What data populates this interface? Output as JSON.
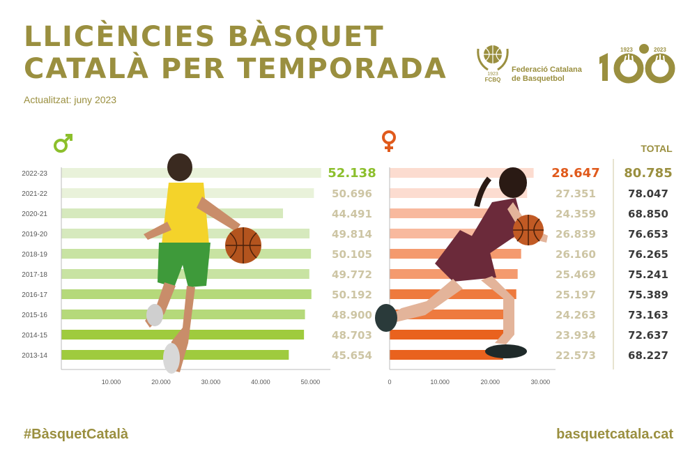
{
  "header": {
    "title_line1": "LLICÈNCIES BÀSQUET",
    "title_line2": "CATALÀ PER TEMPORADA",
    "subtitle": "Actualitzat: juny 2023"
  },
  "logos": {
    "fcbq_year": "1923",
    "fcbq_abbr": "FCBQ",
    "fcbq_name_line1": "Federació Catalana",
    "fcbq_name_line2": "de Basquetbol",
    "centenary_start": "1923",
    "centenary_end": "2023"
  },
  "footer": {
    "hashtag": "#BàsquetCatalà",
    "website": "basquetcatala.cat"
  },
  "colors": {
    "gold": "#9a8f3f",
    "male_highlight": "#8cbf2c",
    "female_highlight": "#e05a1c",
    "male_bars": [
      "#e9f2da",
      "#e9f2da",
      "#d6e9bd",
      "#d6e9bd",
      "#c8e3a2",
      "#c8e3a2",
      "#b5d97a",
      "#b5d97a",
      "#9fcb3e",
      "#9fcb3e"
    ],
    "female_bars": [
      "#fcdcd0",
      "#fcdcd0",
      "#f8b99e",
      "#f8b99e",
      "#f49a6e",
      "#f49a6e",
      "#ee7a3e",
      "#ee7a3e",
      "#e9621e",
      "#e9621e"
    ]
  },
  "chart_data": [
    {
      "type": "bar",
      "orientation": "horizontal",
      "legend_symbol": "♂",
      "categories": [
        "2022-23",
        "2021-22",
        "2020-21",
        "2019-20",
        "2018-19",
        "2017-18",
        "2016-17",
        "2015-16",
        "2014-15",
        "2013-14"
      ],
      "values": [
        52138,
        50696,
        44491,
        49814,
        50105,
        49772,
        50192,
        48900,
        48703,
        45654
      ],
      "value_labels": [
        "52.138",
        "50.696",
        "44.491",
        "49.814",
        "50.105",
        "49.772",
        "50.192",
        "48.900",
        "48.703",
        "45.654"
      ],
      "xticks": [
        10000,
        20000,
        30000,
        40000,
        50000
      ],
      "xtick_labels": [
        "10.000",
        "20.000",
        "30.000",
        "40.000",
        "50.000"
      ],
      "xlim": [
        0,
        54000
      ]
    },
    {
      "type": "bar",
      "orientation": "horizontal",
      "legend_symbol": "♀",
      "categories": [
        "2022-23",
        "2021-22",
        "2020-21",
        "2019-20",
        "2018-19",
        "2017-18",
        "2016-17",
        "2015-16",
        "2014-15",
        "2013-14"
      ],
      "values": [
        28647,
        27351,
        24359,
        26839,
        26160,
        25469,
        25197,
        24263,
        23934,
        22573
      ],
      "value_labels": [
        "28.647",
        "27.351",
        "24.359",
        "26.839",
        "26.160",
        "25.469",
        "25.197",
        "24.263",
        "23.934",
        "22.573"
      ],
      "xticks": [
        0,
        10000,
        20000,
        30000
      ],
      "xtick_labels": [
        "0",
        "10.000",
        "20.000",
        "30.000"
      ],
      "xlim": [
        0,
        33000
      ]
    },
    {
      "type": "table",
      "header": "TOTAL",
      "values": [
        80785,
        78047,
        68850,
        76653,
        76265,
        75241,
        75389,
        73163,
        72637,
        68227
      ],
      "value_labels": [
        "80.785",
        "78.047",
        "68.850",
        "76.653",
        "76.265",
        "75.241",
        "75.389",
        "73.163",
        "72.637",
        "68.227"
      ]
    }
  ]
}
